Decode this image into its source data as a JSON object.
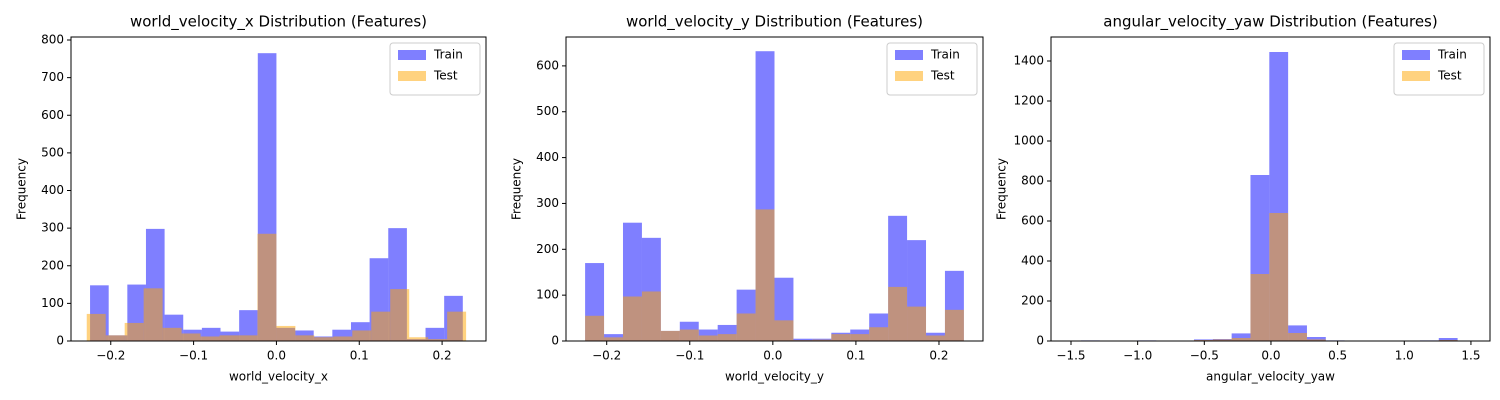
{
  "chart_data": [
    {
      "type": "histogram",
      "title": "world_velocity_x Distribution (Features)",
      "xlabel": "world_velocity_x",
      "ylabel": "Frequency",
      "xlim": [
        -0.248,
        0.253
      ],
      "ylim": [
        0,
        808
      ],
      "xticks": [
        {
          "value": -0.2,
          "label": "−0.2"
        },
        {
          "value": -0.1,
          "label": "−0.1"
        },
        {
          "value": 0,
          "label": "0.0"
        },
        0.1,
        0.2
      ],
      "yticks": [
        0,
        100,
        200,
        300,
        400,
        500,
        600,
        700,
        800
      ],
      "legend": "upper right",
      "series": [
        {
          "name": "Train",
          "color": "#0000ff",
          "alpha": 0.5,
          "bins": [
            -0.225,
            -0.2025,
            -0.18,
            -0.1575,
            -0.135,
            -0.1125,
            -0.09,
            -0.0675,
            -0.045,
            -0.0225,
            0,
            0.0225,
            0.045,
            0.0675,
            0.09,
            0.1125,
            0.135,
            0.1575,
            0.18,
            0.2025,
            0.225
          ],
          "values": [
            148,
            15,
            150,
            298,
            70,
            30,
            35,
            25,
            82,
            765,
            35,
            28,
            12,
            30,
            50,
            220,
            300,
            5,
            35,
            120
          ]
        },
        {
          "name": "Test",
          "color": "#ffa500",
          "alpha": 0.5,
          "bins": [
            -0.229,
            -0.2061,
            -0.1832,
            -0.1603,
            -0.1374,
            -0.1145,
            -0.0916,
            -0.0687,
            -0.0458,
            -0.0229,
            0,
            0.0229,
            0.0458,
            0.0687,
            0.0916,
            0.1145,
            0.1374,
            0.1603,
            0.1832,
            0.2061,
            0.229
          ],
          "values": [
            72,
            15,
            48,
            140,
            35,
            20,
            12,
            15,
            15,
            285,
            40,
            15,
            10,
            12,
            28,
            78,
            138,
            10,
            5,
            78
          ]
        }
      ]
    },
    {
      "type": "histogram",
      "title": "world_velocity_y Distribution (Features)",
      "xlabel": "world_velocity_y",
      "ylabel": "Frequency",
      "xlim": [
        -0.249,
        0.253
      ],
      "ylim": [
        0,
        663
      ],
      "xticks": [
        {
          "value": -0.2,
          "label": "−0.2"
        },
        {
          "value": -0.1,
          "label": "−0.1"
        },
        {
          "value": 0,
          "label": "0.0"
        },
        0.1,
        0.2
      ],
      "yticks": [
        0,
        100,
        200,
        300,
        400,
        500,
        600
      ],
      "legend": "upper right",
      "series": [
        {
          "name": "Train",
          "color": "#0000ff",
          "alpha": 0.5,
          "bins": [
            -0.226,
            -0.2032,
            -0.1804,
            -0.1576,
            -0.1348,
            -0.112,
            -0.0892,
            -0.0664,
            -0.0436,
            -0.0208,
            0.002,
            0.0248,
            0.0476,
            0.0704,
            0.0932,
            0.116,
            0.1388,
            0.1616,
            0.1844,
            0.2072,
            0.23
          ],
          "values": [
            170,
            15,
            258,
            225,
            22,
            42,
            25,
            35,
            112,
            632,
            138,
            5,
            5,
            18,
            25,
            60,
            273,
            220,
            18,
            153
          ]
        },
        {
          "name": "Test",
          "color": "#ffa500",
          "alpha": 0.5,
          "bins": [
            -0.226,
            -0.2032,
            -0.1804,
            -0.1576,
            -0.1348,
            -0.112,
            -0.0892,
            -0.0664,
            -0.0436,
            -0.0208,
            0.002,
            0.0248,
            0.0476,
            0.0704,
            0.0932,
            0.116,
            0.1388,
            0.1616,
            0.1844,
            0.2072,
            0.23
          ],
          "values": [
            55,
            8,
            97,
            108,
            22,
            25,
            12,
            15,
            60,
            287,
            45,
            2,
            3,
            15,
            15,
            30,
            118,
            75,
            12,
            68
          ]
        }
      ]
    },
    {
      "type": "histogram",
      "title": "angular_velocity_yaw Distribution (Features)",
      "xlabel": "angular_velocity_yaw",
      "ylabel": "Frequency",
      "xlim": [
        -1.65,
        1.643
      ],
      "ylim": [
        0,
        1520
      ],
      "xticks": [
        {
          "value": -1.5,
          "label": "−1.5"
        },
        {
          "value": -1,
          "label": "−1.0"
        },
        {
          "value": -0.5,
          "label": "−0.5"
        },
        {
          "value": 0,
          "label": "0.0"
        },
        0.5,
        {
          "value": 1,
          "label": "1.0"
        },
        1.5
      ],
      "yticks": [
        0,
        200,
        400,
        600,
        800,
        1000,
        1200,
        1400
      ],
      "legend": "upper right",
      "series": [
        {
          "name": "Train",
          "color": "#0000ff",
          "alpha": 0.5,
          "bins": [
            -1.425,
            -1.28375,
            -1.1425,
            -1.00125,
            -0.86,
            -0.71875,
            -0.5775,
            -0.43625,
            -0.295,
            -0.15375,
            -0.0125,
            0.12875,
            0.27,
            0.41125,
            0.5525,
            0.69375,
            0.835,
            0.97625,
            1.1175,
            1.25875,
            1.4
          ],
          "values": [
            3,
            2,
            0,
            3,
            2,
            0,
            8,
            10,
            38,
            830,
            1445,
            78,
            20,
            3,
            2,
            2,
            0,
            0,
            3,
            15
          ]
        },
        {
          "name": "Test",
          "color": "#ffa500",
          "alpha": 0.5,
          "bins": [
            -1.425,
            -1.28375,
            -1.1425,
            -1.00125,
            -0.86,
            -0.71875,
            -0.5775,
            -0.43625,
            -0.295,
            -0.15375,
            -0.0125,
            0.12875,
            0.27,
            0.41125,
            0.5525,
            0.69375,
            0.835,
            0.97625,
            1.1175,
            1.25875,
            1.4
          ],
          "values": [
            2,
            1,
            0,
            2,
            1,
            0,
            5,
            8,
            15,
            335,
            640,
            40,
            8,
            2,
            1,
            1,
            0,
            0,
            1,
            5
          ]
        }
      ]
    }
  ]
}
